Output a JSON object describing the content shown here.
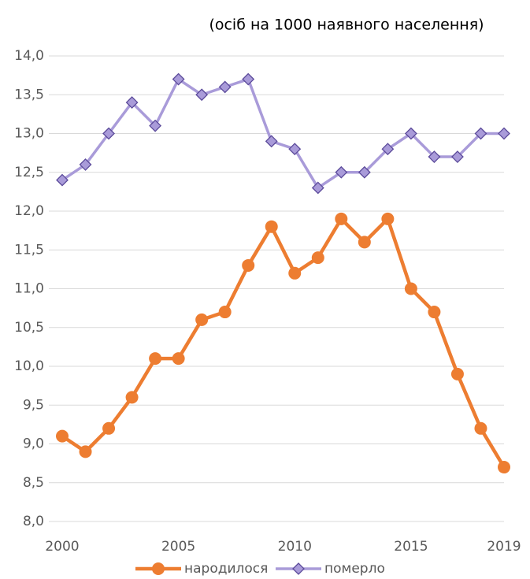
{
  "chart_data": {
    "type": "line",
    "subtitle": "(осіб на 1000 наявного населення)",
    "x": [
      2000,
      2001,
      2002,
      2003,
      2004,
      2005,
      2006,
      2007,
      2008,
      2009,
      2010,
      2011,
      2012,
      2013,
      2014,
      2015,
      2016,
      2017,
      2018,
      2019
    ],
    "xlim": [
      2000,
      2019
    ],
    "xticks": [
      2000,
      2005,
      2010,
      2015,
      2019
    ],
    "ylim": [
      8,
      14
    ],
    "yticks": [
      {
        "value": 8,
        "label": "8,0"
      },
      {
        "value": 8.5,
        "label": "8,5"
      },
      {
        "value": 9,
        "label": "9,0"
      },
      {
        "value": 9.5,
        "label": "9,5"
      },
      {
        "value": 10,
        "label": "10,0"
      },
      {
        "value": 10.5,
        "label": "10,5"
      },
      {
        "value": 11,
        "label": "11,0"
      },
      {
        "value": 11.5,
        "label": "11,5"
      },
      {
        "value": 12,
        "label": "12,0"
      },
      {
        "value": 12.5,
        "label": "12,5"
      },
      {
        "value": 13,
        "label": "13,0"
      },
      {
        "value": 13.5,
        "label": "13,5"
      },
      {
        "value": 14,
        "label": "14,0"
      }
    ],
    "grid": true,
    "legend": "bottom",
    "series": [
      {
        "name": "народилося",
        "color": "#ed7d31",
        "marker": "circle",
        "values": [
          9.1,
          8.9,
          9.2,
          9.6,
          10.1,
          10.1,
          10.6,
          10.7,
          11.3,
          11.8,
          11.2,
          11.4,
          11.9,
          11.6,
          11.9,
          11.0,
          10.7,
          9.9,
          9.2,
          8.7
        ]
      },
      {
        "name": "померло",
        "color": "#a99bd9",
        "marker": "diamond",
        "values": [
          12.4,
          12.6,
          13.0,
          13.4,
          13.1,
          13.7,
          13.5,
          13.6,
          13.7,
          12.9,
          12.8,
          12.3,
          12.5,
          12.5,
          12.8,
          13.0,
          12.7,
          12.7,
          13.0,
          13.0
        ]
      }
    ]
  }
}
